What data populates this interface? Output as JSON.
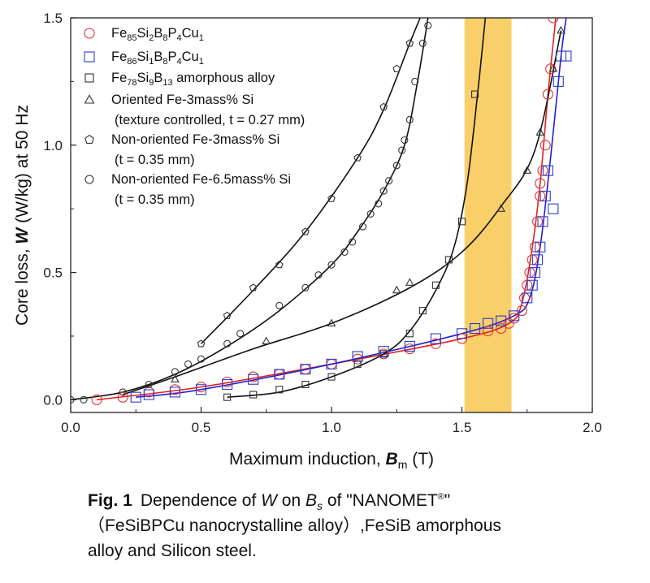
{
  "chart_data": {
    "type": "scatter",
    "xlabel": {
      "text": "Maximum induction, ",
      "symbol": "B",
      "subscript": "m",
      "unit": " (T)"
    },
    "ylabel": {
      "text": "Core loss, ",
      "symbol": "W",
      "unit": " (W/kg) at 50 Hz"
    },
    "xlim": [
      0,
      2.0
    ],
    "ylim": [
      -0.05,
      1.5
    ],
    "xticks": [
      "0.0",
      "0.5",
      "1.0",
      "1.5",
      "2.0"
    ],
    "yticks": [
      "0.0",
      "0.5",
      "1.0",
      "1.5"
    ],
    "highlight_band": {
      "x_from": 1.51,
      "x_to": 1.69,
      "color": "#f9cf6a"
    },
    "series": [
      {
        "marker": "circle",
        "color": "#e03030",
        "fit_color": "#e02020",
        "legend": [
          "Fe",
          "85",
          "Si",
          "2",
          "B",
          "8",
          "P",
          "4",
          "Cu",
          "1"
        ],
        "legend_sub": "",
        "points": [
          [
            0.1,
            0.0
          ],
          [
            0.2,
            0.01
          ],
          [
            0.3,
            0.03
          ],
          [
            0.4,
            0.04
          ],
          [
            0.5,
            0.05
          ],
          [
            0.6,
            0.07
          ],
          [
            0.7,
            0.09
          ],
          [
            0.8,
            0.1
          ],
          [
            0.9,
            0.12
          ],
          [
            1.0,
            0.14
          ],
          [
            1.1,
            0.16
          ],
          [
            1.2,
            0.18
          ],
          [
            1.3,
            0.2
          ],
          [
            1.4,
            0.22
          ],
          [
            1.5,
            0.24
          ],
          [
            1.6,
            0.27
          ],
          [
            1.65,
            0.28
          ],
          [
            1.68,
            0.3
          ],
          [
            1.7,
            0.32
          ],
          [
            1.73,
            0.35
          ],
          [
            1.74,
            0.4
          ],
          [
            1.75,
            0.45
          ],
          [
            1.76,
            0.5
          ],
          [
            1.77,
            0.55
          ],
          [
            1.78,
            0.6
          ],
          [
            1.79,
            0.7
          ],
          [
            1.8,
            0.8
          ],
          [
            1.8,
            0.85
          ],
          [
            1.81,
            0.9
          ],
          [
            1.82,
            1.0
          ],
          [
            1.83,
            1.2
          ],
          [
            1.84,
            1.3
          ],
          [
            1.85,
            1.5
          ]
        ],
        "fit": [
          [
            0.1,
            0.0
          ],
          [
            0.5,
            0.05
          ],
          [
            1.0,
            0.14
          ],
          [
            1.5,
            0.24
          ],
          [
            1.68,
            0.3
          ],
          [
            1.73,
            0.38
          ],
          [
            1.77,
            0.6
          ],
          [
            1.8,
            0.85
          ],
          [
            1.83,
            1.2
          ],
          [
            1.86,
            1.5
          ]
        ]
      },
      {
        "marker": "square",
        "color": "#2a3bd0",
        "fit_color": "#2020d0",
        "legend": [
          "Fe",
          "86",
          "Si",
          "1",
          "B",
          "8",
          "P",
          "4",
          "Cu",
          "1"
        ],
        "legend_sub": "",
        "points": [
          [
            0.25,
            0.01
          ],
          [
            0.3,
            0.02
          ],
          [
            0.4,
            0.03
          ],
          [
            0.5,
            0.04
          ],
          [
            0.6,
            0.06
          ],
          [
            0.7,
            0.08
          ],
          [
            0.8,
            0.1
          ],
          [
            0.9,
            0.12
          ],
          [
            1.0,
            0.14
          ],
          [
            1.1,
            0.17
          ],
          [
            1.2,
            0.19
          ],
          [
            1.3,
            0.21
          ],
          [
            1.4,
            0.24
          ],
          [
            1.5,
            0.26
          ],
          [
            1.55,
            0.28
          ],
          [
            1.6,
            0.3
          ],
          [
            1.65,
            0.31
          ],
          [
            1.7,
            0.33
          ],
          [
            1.75,
            0.4
          ],
          [
            1.77,
            0.45
          ],
          [
            1.78,
            0.5
          ],
          [
            1.79,
            0.55
          ],
          [
            1.8,
            0.6
          ],
          [
            1.81,
            0.7
          ],
          [
            1.82,
            0.8
          ],
          [
            1.83,
            0.9
          ],
          [
            1.85,
            0.75
          ],
          [
            1.87,
            1.25
          ],
          [
            1.88,
            1.35
          ],
          [
            1.9,
            1.35
          ]
        ],
        "fit": [
          [
            0.25,
            0.01
          ],
          [
            0.5,
            0.04
          ],
          [
            1.0,
            0.14
          ],
          [
            1.5,
            0.26
          ],
          [
            1.7,
            0.33
          ],
          [
            1.76,
            0.4
          ],
          [
            1.8,
            0.6
          ],
          [
            1.84,
            0.95
          ],
          [
            1.88,
            1.35
          ],
          [
            1.9,
            1.5
          ]
        ]
      },
      {
        "marker": "square",
        "color": "#333333",
        "fit_color": "#111111",
        "legend": [
          "Fe",
          "78",
          "Si",
          "9",
          "B",
          "13",
          " amorphous alloy",
          "",
          "",
          ""
        ],
        "legend_sub": "",
        "points": [
          [
            0.6,
            0.01
          ],
          [
            0.7,
            0.02
          ],
          [
            0.8,
            0.04
          ],
          [
            0.9,
            0.06
          ],
          [
            1.0,
            0.09
          ],
          [
            1.1,
            0.14
          ],
          [
            1.2,
            0.18
          ],
          [
            1.3,
            0.26
          ],
          [
            1.35,
            0.35
          ],
          [
            1.4,
            0.45
          ],
          [
            1.45,
            0.55
          ],
          [
            1.5,
            0.7
          ],
          [
            1.55,
            1.2
          ]
        ],
        "fit": [
          [
            0.6,
            0.01
          ],
          [
            0.8,
            0.03
          ],
          [
            1.0,
            0.09
          ],
          [
            1.2,
            0.18
          ],
          [
            1.3,
            0.27
          ],
          [
            1.4,
            0.43
          ],
          [
            1.47,
            0.6
          ],
          [
            1.52,
            0.85
          ],
          [
            1.56,
            1.2
          ],
          [
            1.59,
            1.5
          ]
        ]
      },
      {
        "marker": "triangle",
        "color": "#333333",
        "fit_color": "#111111",
        "legend": [
          "Oriented Fe-3mass% Si",
          "",
          "",
          "",
          "",
          "",
          "",
          "",
          "",
          ""
        ],
        "legend_sub": "(texture controlled, t = 0.27 mm)",
        "points": [
          [
            0.4,
            0.08
          ],
          [
            0.75,
            0.23
          ],
          [
            1.0,
            0.3
          ],
          [
            1.25,
            0.43
          ],
          [
            1.3,
            0.46
          ],
          [
            1.65,
            0.75
          ],
          [
            1.75,
            0.9
          ],
          [
            1.8,
            1.05
          ],
          [
            1.85,
            1.3
          ],
          [
            1.88,
            1.45
          ]
        ],
        "fit": [
          [
            0.2,
            0.02
          ],
          [
            0.4,
            0.09
          ],
          [
            0.7,
            0.2
          ],
          [
            1.0,
            0.3
          ],
          [
            1.3,
            0.44
          ],
          [
            1.5,
            0.58
          ],
          [
            1.65,
            0.76
          ],
          [
            1.78,
            0.98
          ],
          [
            1.88,
            1.45
          ]
        ]
      },
      {
        "marker": "pentagon",
        "color": "#333333",
        "fit_color": "#111111",
        "legend": [
          "Non-oriented Fe-3mass% Si",
          "",
          "",
          "",
          "",
          "",
          "",
          "",
          "",
          ""
        ],
        "legend_sub": "(t = 0.35 mm)",
        "points": [
          [
            0.5,
            0.22
          ],
          [
            0.6,
            0.33
          ],
          [
            0.7,
            0.44
          ],
          [
            0.8,
            0.53
          ],
          [
            0.9,
            0.66
          ],
          [
            1.0,
            0.79
          ],
          [
            1.1,
            0.95
          ],
          [
            1.2,
            1.15
          ],
          [
            1.25,
            1.3
          ],
          [
            1.3,
            1.4
          ]
        ],
        "fit": [
          [
            0.5,
            0.22
          ],
          [
            0.7,
            0.43
          ],
          [
            0.9,
            0.66
          ],
          [
            1.1,
            0.95
          ],
          [
            1.2,
            1.14
          ],
          [
            1.3,
            1.4
          ],
          [
            1.34,
            1.5
          ]
        ]
      },
      {
        "marker": "circle",
        "color": "#333333",
        "fit_color": "#111111",
        "legend": [
          "Non-oriented Fe-6.5mass% Si",
          "",
          "",
          "",
          "",
          "",
          "",
          "",
          "",
          ""
        ],
        "legend_sub": "(t = 0.35 mm)",
        "points": [
          [
            0.0,
            0.0
          ],
          [
            0.05,
            0.0
          ],
          [
            0.2,
            0.03
          ],
          [
            0.3,
            0.06
          ],
          [
            0.4,
            0.11
          ],
          [
            0.45,
            0.14
          ],
          [
            0.5,
            0.16
          ],
          [
            0.6,
            0.22
          ],
          [
            0.65,
            0.26
          ],
          [
            0.8,
            0.37
          ],
          [
            0.9,
            0.44
          ],
          [
            0.95,
            0.49
          ],
          [
            1.0,
            0.53
          ],
          [
            1.05,
            0.58
          ],
          [
            1.08,
            0.62
          ],
          [
            1.12,
            0.68
          ],
          [
            1.15,
            0.73
          ],
          [
            1.18,
            0.77
          ],
          [
            1.2,
            0.82
          ],
          [
            1.22,
            0.86
          ],
          [
            1.25,
            0.92
          ],
          [
            1.27,
            0.98
          ],
          [
            1.28,
            1.02
          ],
          [
            1.3,
            1.1
          ],
          [
            1.32,
            1.25
          ],
          [
            1.35,
            1.4
          ],
          [
            1.37,
            1.47
          ]
        ],
        "fit": [
          [
            0.0,
            0.0
          ],
          [
            0.2,
            0.03
          ],
          [
            0.4,
            0.1
          ],
          [
            0.6,
            0.21
          ],
          [
            0.8,
            0.35
          ],
          [
            1.0,
            0.53
          ],
          [
            1.1,
            0.66
          ],
          [
            1.2,
            0.82
          ],
          [
            1.28,
            1.0
          ],
          [
            1.33,
            1.25
          ],
          [
            1.37,
            1.5
          ]
        ]
      }
    ]
  },
  "caption": {
    "label": "Fig. 1",
    "line1_prefix": "Dependence of ",
    "line1_W": "W",
    "line1_on": " on ",
    "line1_B": "B",
    "line1_Bsub": "s",
    "line1_rest": " of \"NANOMET",
    "line1_reg": "®",
    "line1_end": "\"",
    "line2": "（FeSiBPCu nanocrystalline alloy）,FeSiB amorphous",
    "line3": "alloy and Silicon steel."
  }
}
